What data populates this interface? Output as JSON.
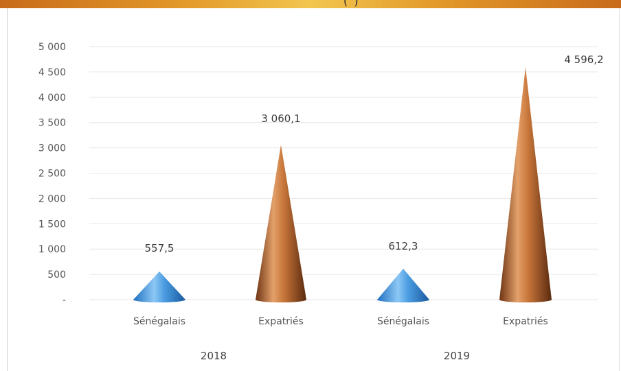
{
  "header": {
    "partial_text": "(            )"
  },
  "chart_data": {
    "type": "bar",
    "shape": "cone",
    "groups": [
      "2018",
      "2019"
    ],
    "categories": [
      "Sénégalais",
      "Expatriés",
      "Sénégalais",
      "Expatriés"
    ],
    "values": [
      557.5,
      3060.1,
      612.3,
      4596.2
    ],
    "value_labels": [
      "557,5",
      "3 060,1",
      "612,3",
      "4 596,2"
    ],
    "y_ticks": [
      "-",
      "500",
      "1 000",
      "1 500",
      "2 000",
      "2 500",
      "3 000",
      "3 500",
      "4 000",
      "4 500",
      "5 000"
    ],
    "ylim": [
      0,
      5000
    ],
    "grid": true,
    "colors": {
      "Sénégalais": "#4a9be0",
      "Expatriés": "#b5652a"
    }
  }
}
